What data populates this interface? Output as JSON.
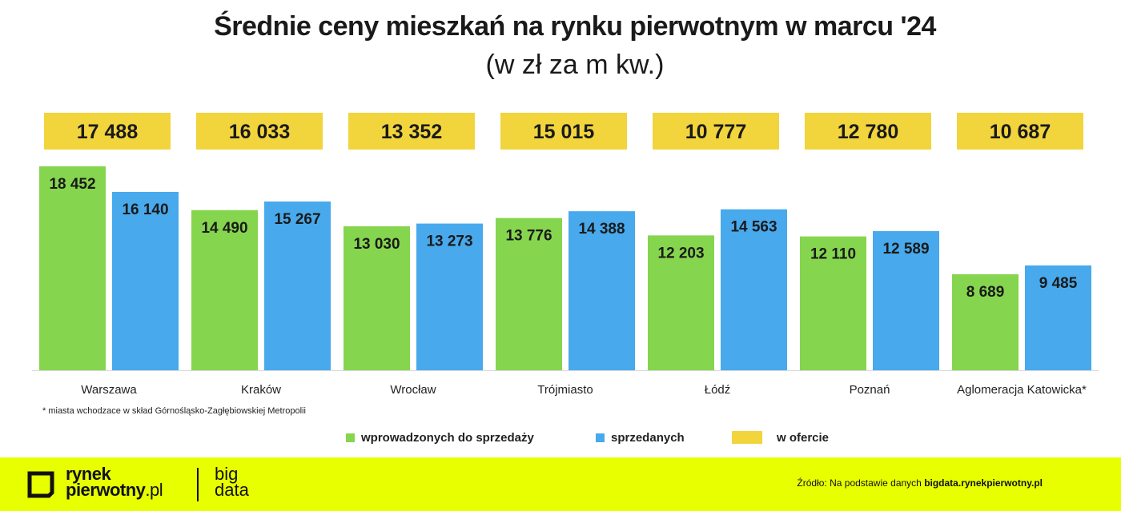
{
  "chart_data": {
    "type": "bar",
    "title": "Średnie ceny mieszkań na rynku pierwotnym w marcu '24",
    "subtitle": "(w zł za m kw.)",
    "categories": [
      "Warszawa",
      "Kraków",
      "Wrocław",
      "Trójmiasto",
      "Łódź",
      "Poznań",
      "Aglomeracja Katowicka*"
    ],
    "series": [
      {
        "name": "wprowadzonych do sprzedaży",
        "color": "#86d54e",
        "values": [
          18452,
          14490,
          13030,
          13776,
          12203,
          12110,
          8689
        ],
        "labels": [
          "18 452",
          "14 490",
          "13 030",
          "13 776",
          "12 203",
          "12 110",
          "8 689"
        ]
      },
      {
        "name": "sprzedanych",
        "color": "#48a9ec",
        "values": [
          16140,
          15267,
          13273,
          14388,
          14563,
          12589,
          9485
        ],
        "labels": [
          "16 140",
          "15 267",
          "13 273",
          "14 388",
          "14 563",
          "12 589",
          "9 485"
        ]
      }
    ],
    "offer": {
      "name": "w ofercie",
      "color": "#f2d43d",
      "values": [
        17488,
        16033,
        13352,
        15015,
        10777,
        12780,
        10687
      ],
      "labels": [
        "17 488",
        "16 033",
        "13 352",
        "15 015",
        "10 777",
        "12 780",
        "10 687"
      ]
    },
    "ylim": [
      0,
      18452
    ],
    "grid": false,
    "legend_position": "bottom"
  },
  "footnote": "* miasta wchodzace w skład Górnośląsko-Zagłębiowskiej Metropolii",
  "footer": {
    "logo_line1": "rynek",
    "logo_line2": "pierwotny",
    "logo_line2_suffix": ".pl",
    "bigdata_line1": "big",
    "bigdata_line2": "data",
    "source_prefix": "Źródło: Na podstawie danych ",
    "source_link": "bigdata.rynekpierwotny.pl"
  }
}
